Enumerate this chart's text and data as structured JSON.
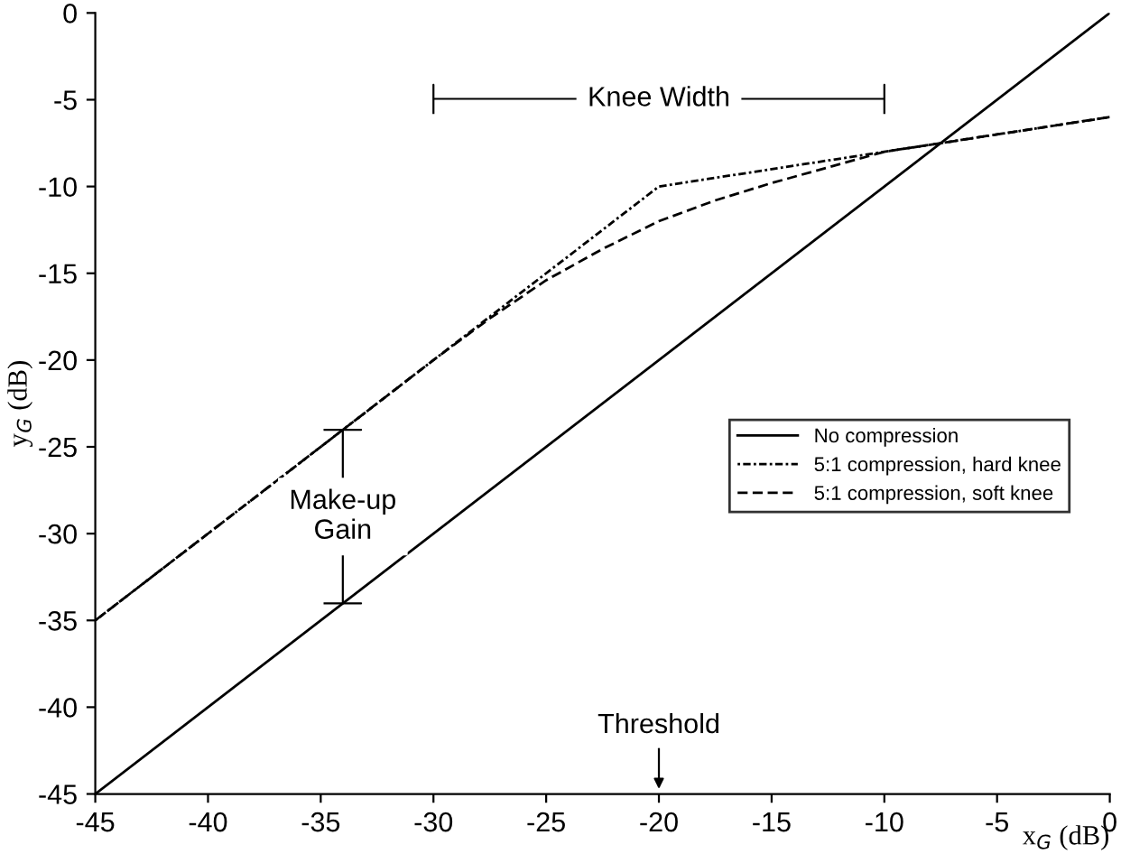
{
  "chart_data": {
    "type": "line",
    "xlabel": "x$_{G}$ (dB)",
    "ylabel": "y$_{G}$ (dB)",
    "xlim": [
      -45,
      0
    ],
    "ylim": [
      -45,
      0
    ],
    "xticks": [
      -45,
      -40,
      -35,
      -30,
      -25,
      -20,
      -15,
      -10,
      -5,
      0
    ],
    "yticks": [
      -45,
      -40,
      -35,
      -30,
      -25,
      -20,
      -15,
      -10,
      -5,
      0
    ],
    "grid": false,
    "legend": "right",
    "series": [
      {
        "name": "No compression",
        "color": "#000000",
        "line_style": "solid",
        "x": [
          -45,
          0
        ],
        "values": [
          -45,
          0
        ]
      },
      {
        "name": "5:1 compression, hard knee",
        "color": "#000000",
        "line_style": "dotted",
        "x": [
          -45,
          -20,
          0
        ],
        "values": [
          -35,
          -10,
          -6
        ]
      },
      {
        "name": "5:1 compression, soft knee",
        "color": "#000000",
        "line_style": "dashed",
        "x": [
          -45,
          -30,
          -27.5,
          -25,
          -22.5,
          -20,
          -17.5,
          -15,
          -12.5,
          -10,
          0
        ],
        "values": [
          -35,
          -20,
          -17.6,
          -15.4,
          -13.6,
          -12,
          -10.8,
          -9.8,
          -8.9,
          -8,
          -6
        ]
      }
    ],
    "annotations": [
      "Knee Width",
      "Make-up\nGain",
      "Threshold"
    ]
  }
}
